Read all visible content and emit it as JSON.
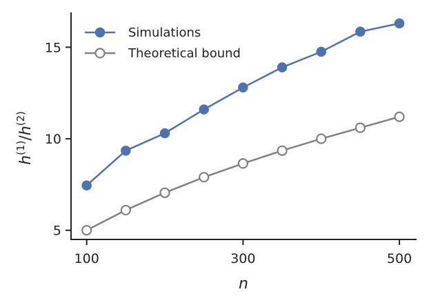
{
  "chart_data": {
    "type": "line",
    "title": "",
    "xlabel": "n",
    "ylabel_base": "h",
    "ylabel_sup_num": "(1)",
    "ylabel_sup_den": "(2)",
    "x": [
      100,
      150,
      200,
      250,
      300,
      350,
      400,
      450,
      500
    ],
    "xlim": [
      80,
      522
    ],
    "ylim": [
      4.5,
      16.9
    ],
    "xticks": [
      100,
      300,
      500
    ],
    "yticks": [
      5,
      10,
      15
    ],
    "grid": false,
    "legend": "top-left",
    "series": [
      {
        "name": "Simulations",
        "values": [
          7.45,
          9.35,
          10.3,
          11.6,
          12.8,
          13.9,
          14.75,
          15.85,
          16.3
        ],
        "color": "#4c72b0",
        "marker": "filled-circle"
      },
      {
        "name": "Theoretical bound",
        "values": [
          5.0,
          6.1,
          7.05,
          7.9,
          8.65,
          9.35,
          10.0,
          10.6,
          11.2
        ],
        "color": "#808080",
        "marker": "hollow-circle"
      }
    ]
  }
}
